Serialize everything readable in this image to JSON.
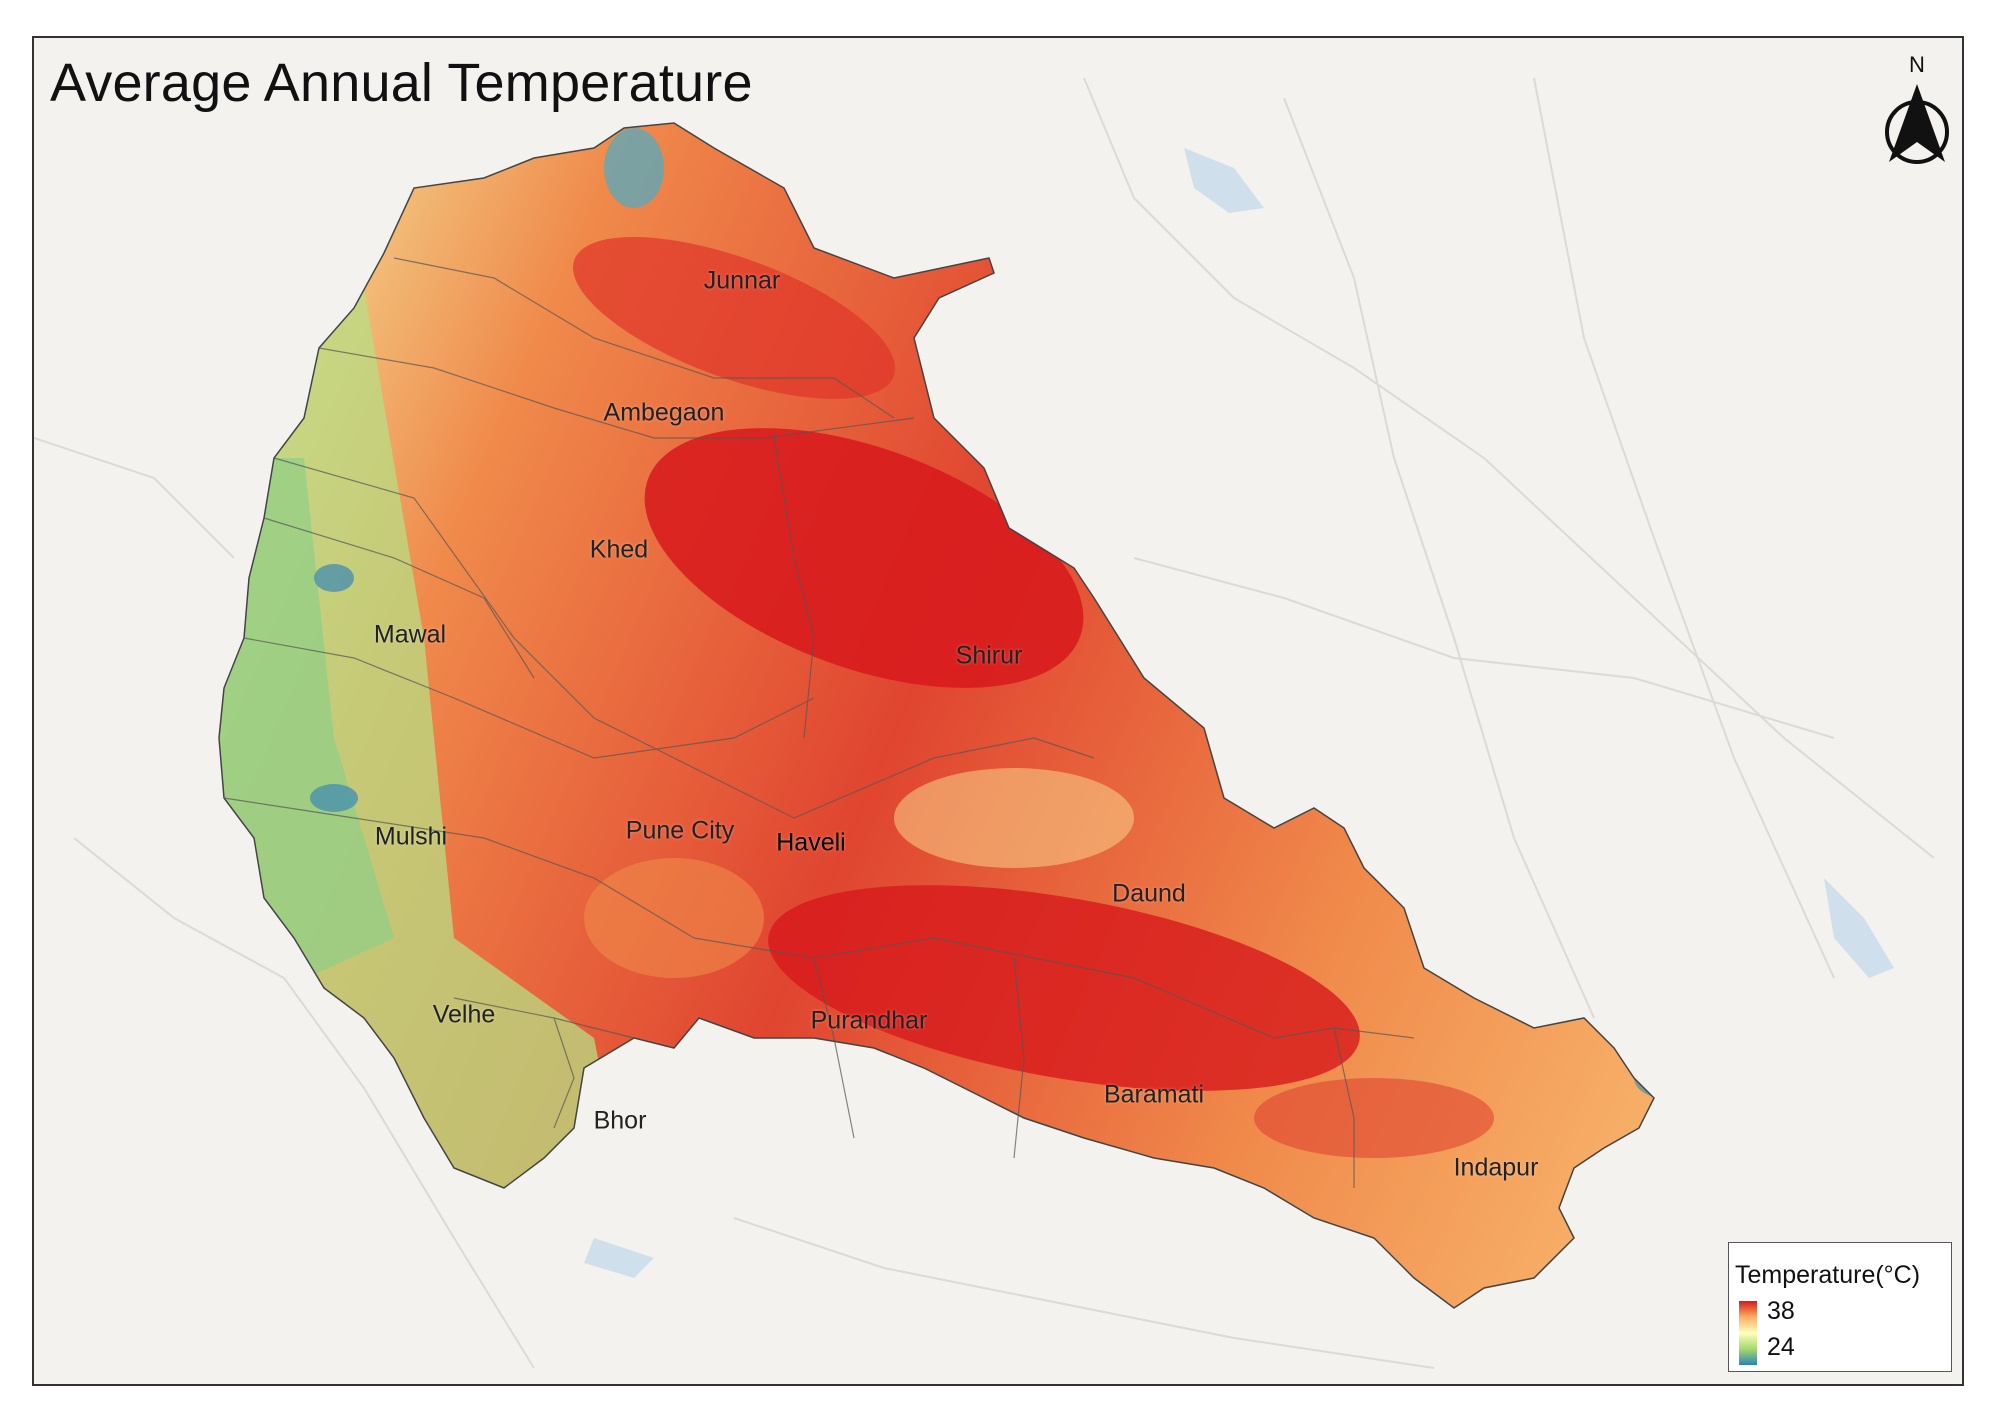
{
  "map": {
    "title": "Average Annual Temperature",
    "north_arrow": {
      "label": "N",
      "icon": "north-arrow-icon"
    },
    "legend": {
      "title": "Temperature(°C)",
      "max": "38",
      "min": "24",
      "colors": [
        "#d7191c",
        "#fdae61",
        "#ffffbf",
        "#a6d96a",
        "#2b83ba"
      ]
    },
    "basemap_color": "#f3f2ee",
    "regions": [
      {
        "id": "junnar",
        "label": "Junnar"
      },
      {
        "id": "ambegaon",
        "label": "Ambegaon"
      },
      {
        "id": "khed",
        "label": "Khed"
      },
      {
        "id": "mawal",
        "label": "Mawal"
      },
      {
        "id": "shirur",
        "label": "Shirur"
      },
      {
        "id": "mulshi",
        "label": "Mulshi"
      },
      {
        "id": "pune-city",
        "label": "Pune City"
      },
      {
        "id": "haveli",
        "label": "Haveli"
      },
      {
        "id": "daund",
        "label": "Daund"
      },
      {
        "id": "velhe",
        "label": "Velhe"
      },
      {
        "id": "purandhar",
        "label": "Purandhar"
      },
      {
        "id": "baramati",
        "label": "Baramati"
      },
      {
        "id": "bhor",
        "label": "Bhor"
      },
      {
        "id": "indapur",
        "label": "Indapur"
      }
    ]
  }
}
